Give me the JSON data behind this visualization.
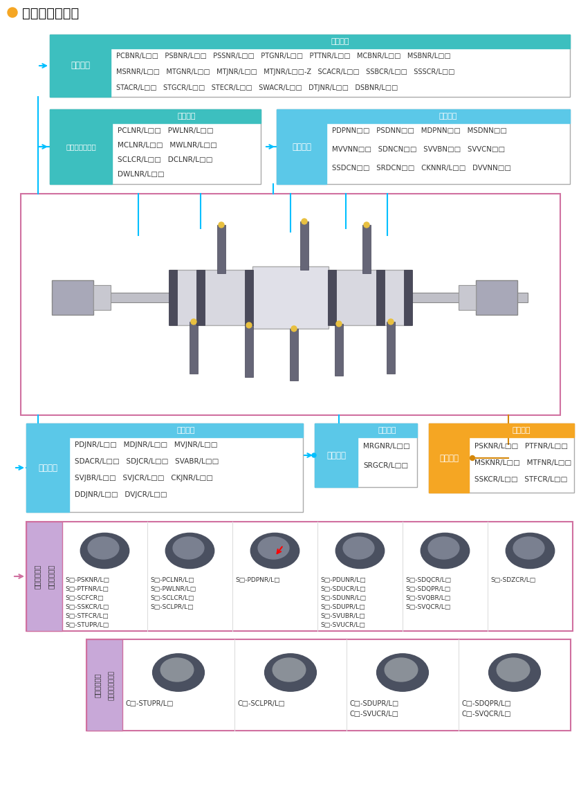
{
  "title": "外圓及內孔車削",
  "bg_color": "#FFFFFF",
  "orange_dot": "#F5A623",
  "teal": "#3DBFBF",
  "light_blue": "#5BC8E8",
  "orange": "#F5A623",
  "purple_bg": "#C8A8D8",
  "pink_border": "#D070A0",
  "cyan_line": "#00BFFF",
  "orange_line": "#D4870A",
  "gray_text": "#333333",
  "white": "#FFFFFF",
  "box_border": "#AAAAAA",
  "light_gray_bg": "#F0F0F0",
  "outer_header": "外圓車削",
  "outer_rows": [
    "PCBNR/L□□   PSBNR/L□□   PSSNR/L□□   PTGNR/L□□   PTTNR/L□□   MCBNR/L□□   MSBNR/L□□",
    "MSRNR/L□□   MTGNR/L□□   MTJNR/L□□   MTJNR/L□□-Z   SCACR/L□□   SSBCR/L□□   SSSCR/L□□",
    "STACR/L□□   STGCR/L□□   STECR/L□□   SWACR/L□□   DTJNR/L□□   DSBNR/L□□"
  ],
  "face_header": "外圓和端面車削",
  "face_rows": [
    "PCLNR/L□□   PWLNR/L□□",
    "MCLNR/L□□   MWLNR/L□□",
    "SCLCR/L□□   DCLNR/L□□",
    "DWLNR/L□□"
  ],
  "copy1_header": "仿形車削",
  "copy1_rows": [
    "PDPNN□□   PSDNN□□   MDPNN□□   MSDNN□□",
    "MVVNN□□   SDNCN□□   SVVBN□□   SVVCN□□",
    "SSDCN□□   SRDCN□□   CKNNR/L□□   DVVNN□□"
  ],
  "copy2_header": "仿形車削",
  "copy2_rows": [
    "PDJNR/L□□   MDJNR/L□□   MVJNR/L□□",
    "SDACR/L□□   SDJCR/L□□   SVABR/L□□",
    "SVJBR/L□□   SVJCR/L□□   CKJNR/L□□",
    "DDJNR/L□□   DVJCR/L□□"
  ],
  "copy3_header": "仿形車削",
  "copy3_rows": [
    "MRGNR/L□□",
    "SRGCR/L□□"
  ],
  "face2_header": "端面車削",
  "face2_rows": [
    "PSKNR/L□□   PTFNR/L□□",
    "MSKNR/L□□   MTFNR/L□□",
    "SSKCR/L□□   STFCR/L□□"
  ],
  "knife_label": "刀具型號",
  "steel_label1": "內孔車削刀具",
  "steel_label2": "（鋼制刀桿）",
  "steel_cols": [
    [
      "S□-PSKNR/L□",
      "S□-PTFNR/L□",
      "S□-SCFCR□",
      "S□-SSKCR/L□",
      "S□-STFCR/L□",
      "S□-STUPR/L□"
    ],
    [
      "S□-PCLNR/L□",
      "S□-PWLNR/L□",
      "S□-SCLCR/L□",
      "S□-SCLPR/L□"
    ],
    [
      "S□-PDPNR/L□"
    ],
    [
      "S□-PDUNR/L□",
      "S□-SDUCR/L□",
      "S□-SDUNR/L□",
      "S□-SDUPR/L□",
      "S□-SVUBR/L□",
      "S□-SVUCR/L□"
    ],
    [
      "S□-SDQCR/L□",
      "S□-SDQPR/L□",
      "S□-SVQBR/L□",
      "S□-SVQCR/L□"
    ],
    [
      "S□-SDZCR/L□"
    ]
  ],
  "carbide_label1": "內孔車削刀具",
  "carbide_label2": "（硬質合金刀桿）",
  "carbide_cols": [
    [
      "C□-STUPR/L□"
    ],
    [
      "C□-SCLPR/L□"
    ],
    [
      "C□-SDUPR/L□",
      "C□-SVUCR/L□"
    ],
    [
      "C□-SDQPR/L□",
      "C□-SVQCR/L□"
    ]
  ]
}
